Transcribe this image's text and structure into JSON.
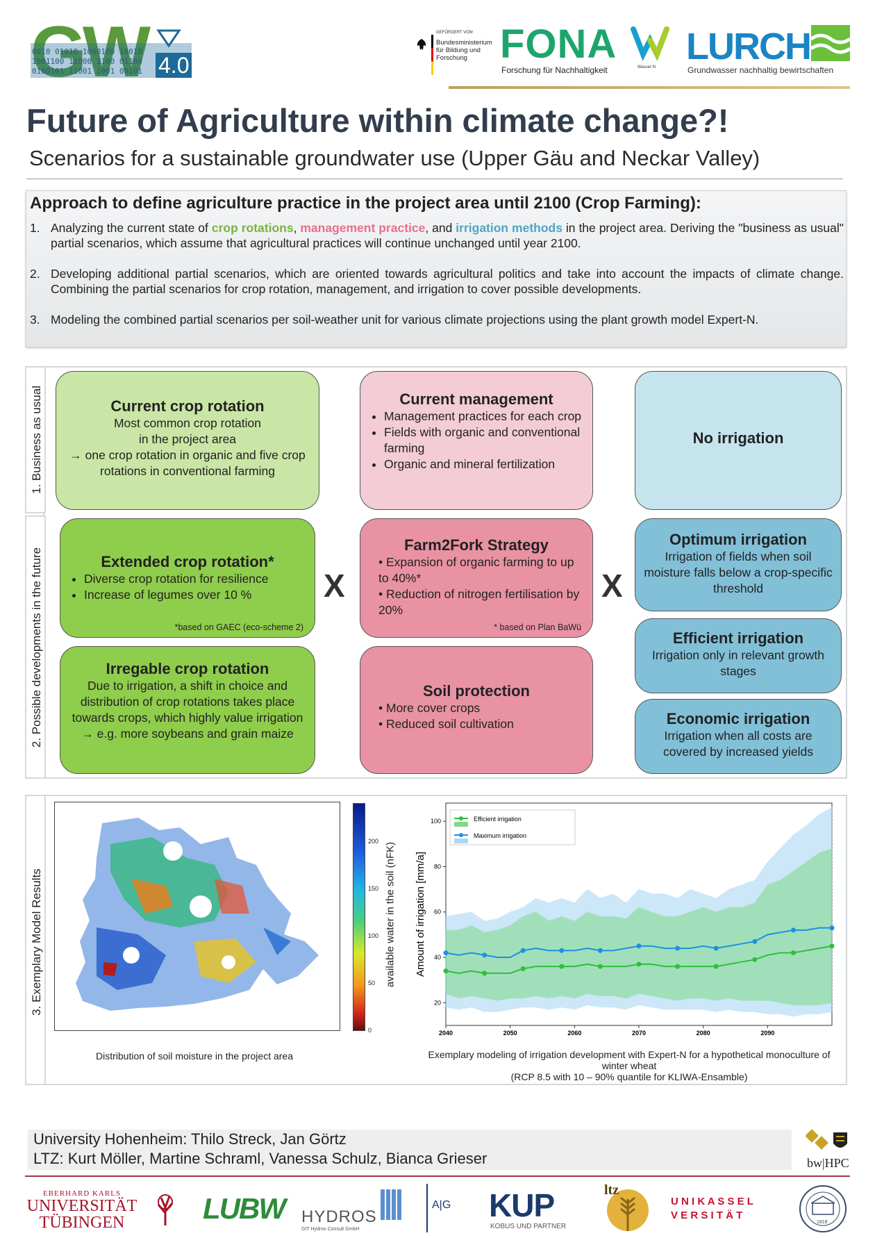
{
  "header": {
    "gw_logo_text": "GW",
    "gw_version": "4.0",
    "gw_binary": "001 01010 100100 10010 1001100 1100 1100",
    "ministry_small": "GEFÖRDERT VOM",
    "ministry_name": "Bundesministerium für Bildung und Forschung",
    "fona_title": "FONA",
    "fona_subtitle": "Forschung für Nachhaltigkeit",
    "wassern_label": "Wasser:N",
    "lurch_title": "LURCH",
    "lurch_subtitle": "Grundwasser nachhaltig bewirtschaften"
  },
  "title": "Future of Agriculture within climate change?!",
  "subtitle": "Scenarios for a sustainable groundwater use (Upper Gäu and Neckar Valley)",
  "approach": {
    "heading": "Approach to define agriculture practice in the project area until 2100 (Crop Farming):",
    "item1": {
      "num": "1.",
      "pre": "Analyzing the current state of ",
      "hl1": "crop rotations",
      "mid1": ", ",
      "hl2": "management practice",
      "mid2": ", and ",
      "hl3": "irrigation methods",
      "post": " in the project area. Deriving the \"business as usual\" partial scenarios, which assume that agricultural practices will continue unchanged until year 2100."
    },
    "item2": {
      "num": "2.",
      "text": "Developing additional partial scenarios, which are oriented towards agricultural politics and take into account the impacts of climate change. Combining the partial scenarios for crop rotation, management, and irrigation to cover possible developments."
    },
    "item3": {
      "num": "3.",
      "text": "Modeling the combined partial scenarios per soil-weather unit for various climate projections using the plant growth model Expert-N."
    }
  },
  "scenarios": {
    "tab1": "1. Business as usual",
    "tab2": "2. Possible developments in the future",
    "current_crop": {
      "title": "Current crop rotation",
      "line1": "Most common crop rotation",
      "line2": "in the project area",
      "line3": "→ one crop rotation in organic and five crop rotations in conventional farming"
    },
    "current_mgmt": {
      "title": "Current management",
      "b1": "Management practices for each crop",
      "b2": "Fields with organic and conventional farming",
      "b3": "Organic and mineral fertilization"
    },
    "no_irrigation": {
      "title": "No irrigation"
    },
    "extended": {
      "title": "Extended crop rotation*",
      "b1": "Diverse crop rotation for resilience",
      "b2": "Increase of legumes over 10 %",
      "note": "*based on GAEC (eco-scheme 2)"
    },
    "farm2fork": {
      "title": "Farm2Fork Strategy",
      "b1": "Expansion of organic farming to up to 40%*",
      "b2": "Reduction of nitrogen fertilisation by 20%",
      "note": "* based on Plan BaWü"
    },
    "optimum": {
      "title": "Optimum irrigation",
      "text": "Irrigation of fields when soil moisture falls below a crop-specific threshold"
    },
    "efficient": {
      "title": "Efficient irrigation",
      "text": "Irrigation only in relevant growth stages"
    },
    "irregable": {
      "title": "Irregable crop rotation",
      "text": "Due to irrigation, a shift in choice and distribution of crop rotations takes place towards crops, which highly value irrigation",
      "line2": "→ e.g. more soybeans and grain maize"
    },
    "soil": {
      "title": "Soil protection",
      "b1": "More cover crops",
      "b2": "Reduced soil cultivation"
    },
    "economic": {
      "title": "Economic irrigation",
      "text": "Irrigation when all costs are covered by increased yields"
    },
    "x_symbol": "X"
  },
  "results": {
    "tab": "3. Exemplary Model Results",
    "colorbar_label": "available water in the soil (nFK)",
    "colorbar_ticks": [
      "200",
      "150",
      "100",
      "50",
      "0"
    ],
    "map_caption": "Distribution of soil moisture in the project area",
    "chart_caption1": "Exemplary modeling of irrigation development with Expert-N for a hypothetical monoculture of winter wheat",
    "chart_caption2": "(RCP 8.5 with 10 – 90% quantile for KLIWA-Ensamble)"
  },
  "chart_data": {
    "type": "line",
    "title": "",
    "xlabel": "",
    "ylabel": "Amount of irrigation [mm/a]",
    "xlim": [
      2040,
      2100
    ],
    "ylim": [
      10,
      108
    ],
    "xticks": [
      2040,
      2050,
      2060,
      2070,
      2080,
      2090
    ],
    "yticks": [
      20,
      40,
      60,
      80,
      100
    ],
    "x": [
      2040,
      2042,
      2044,
      2046,
      2048,
      2050,
      2052,
      2054,
      2056,
      2058,
      2060,
      2062,
      2064,
      2066,
      2068,
      2070,
      2072,
      2074,
      2076,
      2078,
      2080,
      2082,
      2084,
      2086,
      2088,
      2090,
      2092,
      2094,
      2096,
      2098,
      2100
    ],
    "series": [
      {
        "name": "Efficient irrigation",
        "color": "#2fbf3a",
        "values": [
          34,
          33,
          34,
          33,
          33,
          33,
          35,
          36,
          36,
          36,
          36,
          37,
          36,
          36,
          36,
          37,
          37,
          36,
          36,
          36,
          36,
          36,
          37,
          38,
          39,
          41,
          42,
          42,
          43,
          44,
          45
        ],
        "band_low": [
          24,
          22,
          23,
          22,
          21,
          22,
          22,
          23,
          22,
          23,
          22,
          24,
          23,
          23,
          22,
          24,
          23,
          22,
          21,
          22,
          22,
          21,
          22,
          21,
          21,
          21,
          20,
          19,
          19,
          19,
          20
        ],
        "band_high": [
          52,
          52,
          54,
          51,
          52,
          54,
          58,
          60,
          56,
          58,
          56,
          60,
          58,
          58,
          57,
          62,
          60,
          58,
          58,
          60,
          62,
          60,
          62,
          62,
          64,
          72,
          74,
          78,
          82,
          86,
          88
        ]
      },
      {
        "name": "Maximum irrigation",
        "color": "#1e90e0",
        "values": [
          42,
          41,
          42,
          41,
          40,
          40,
          43,
          44,
          43,
          43,
          43,
          44,
          43,
          43,
          44,
          45,
          45,
          44,
          44,
          44,
          45,
          44,
          45,
          46,
          47,
          50,
          51,
          52,
          52,
          53,
          53
        ],
        "band_low": [
          18,
          17,
          18,
          16,
          16,
          17,
          18,
          18,
          17,
          18,
          17,
          19,
          18,
          18,
          17,
          19,
          18,
          17,
          17,
          17,
          17,
          16,
          17,
          16,
          16,
          15,
          15,
          14,
          15,
          15,
          16
        ],
        "band_high": [
          58,
          59,
          60,
          56,
          57,
          60,
          62,
          66,
          64,
          66,
          64,
          70,
          66,
          68,
          64,
          70,
          68,
          68,
          66,
          70,
          68,
          66,
          70,
          72,
          74,
          82,
          88,
          94,
          98,
          103,
          106
        ]
      }
    ],
    "legend": [
      "Efficient irrigation",
      "Maximum irrigation"
    ]
  },
  "authors": {
    "line1": "University Hohenheim: Thilo Streck, Jan Görtz",
    "line2": "LTZ: Kurt Möller, Martine Schraml, Vanessa Schulz, Bianca Grieser"
  },
  "footer": {
    "bwhpc": "bw|HPC",
    "uni_small": "EBERHARD KARLS",
    "uni_big1": "UNIVERSITÄT",
    "uni_big2": "TÜBINGEN",
    "lubw": "LUBW",
    "hydros": "HYDROS",
    "hydros_sub": "GIT Hydros Consult GmbH",
    "azv": "A|G",
    "kup": "KUP",
    "kup_sub": "KOBUS UND PARTNER",
    "ltz": "ltz",
    "kassel1": "U N I K A S S E L",
    "kassel2": "V E R S I T Ä T",
    "seal_year": "1818"
  }
}
